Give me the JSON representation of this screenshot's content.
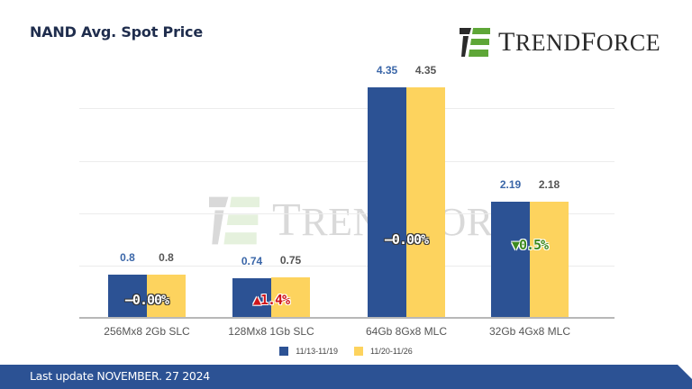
{
  "header": {
    "title": "NAND Avg. Spot Price"
  },
  "brand": {
    "name_first": "T",
    "name_rest": "REND",
    "name_first2": "F",
    "name_rest2": "ORCE",
    "full_name": "TrendForce",
    "colors": {
      "dark": "#2a2a2a",
      "green": "#5ea637"
    }
  },
  "legend": {
    "series": [
      {
        "label": "11/13-11/19",
        "color": "#2c5294"
      },
      {
        "label": "11/20-11/26",
        "color": "#fdd35e"
      }
    ]
  },
  "footer": {
    "text": "Last update NOVEMBER. 27  2024",
    "color": "#2c5294"
  },
  "chart_data": {
    "type": "bar",
    "title": "NAND Avg. Spot Price",
    "xlabel": "",
    "ylabel": "",
    "ylim": [
      0,
      5
    ],
    "grid": true,
    "legend_position": "bottom",
    "categories": [
      "256Mx8 2Gb SLC",
      "128Mx8 1Gb SLC",
      "64Gb 8Gx8 MLC",
      "32Gb 4Gx8 MLC"
    ],
    "series": [
      {
        "name": "11/13-11/19",
        "values": [
          0.8,
          0.74,
          4.35,
          2.19
        ],
        "labels": [
          "0.8",
          "0.74",
          "4.35",
          "2.19"
        ]
      },
      {
        "name": "11/20-11/26",
        "values": [
          0.8,
          0.75,
          4.35,
          2.18
        ],
        "labels": [
          "0.8",
          "0.75",
          "4.35",
          "2.18"
        ]
      }
    ],
    "annotations": [
      {
        "category": "256Mx8 2Gb SLC",
        "text": "–0.00%",
        "direction": "flat"
      },
      {
        "category": "128Mx8 1Gb SLC",
        "text": "▲1.4%",
        "direction": "up"
      },
      {
        "category": "64Gb 8Gx8 MLC",
        "text": "–0.00%",
        "direction": "flat"
      },
      {
        "category": "32Gb 4Gx8 MLC",
        "text": "▼0.5%",
        "direction": "down"
      }
    ]
  }
}
